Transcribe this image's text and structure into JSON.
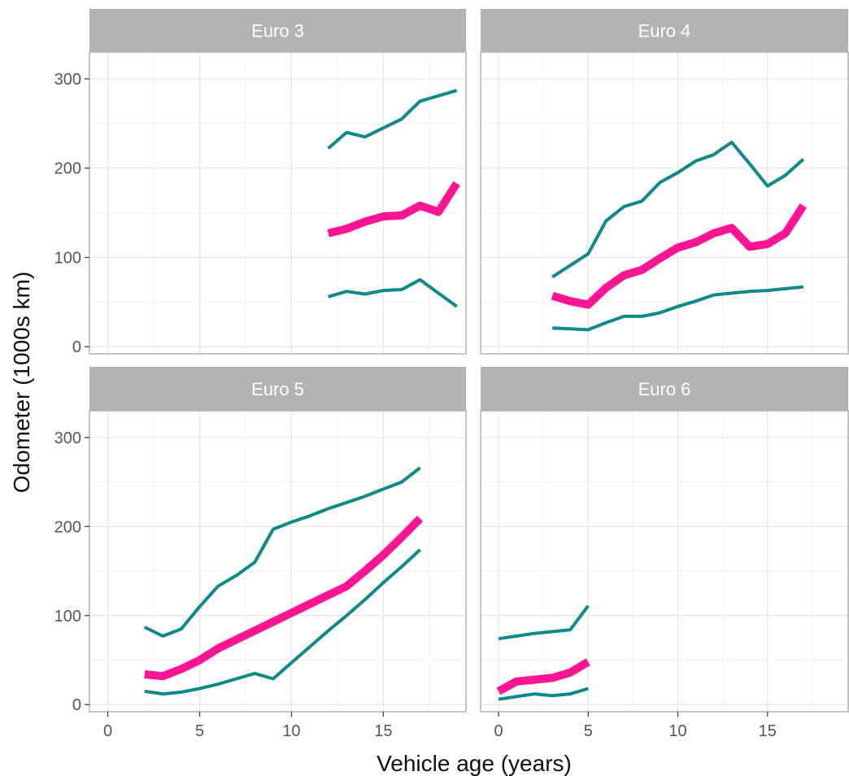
{
  "chart_data": {
    "type": "line",
    "xlabel": "Vehicle age (years)",
    "ylabel": "Odometer (1000s km)",
    "xlim": [
      -1,
      19.5
    ],
    "ylim": [
      -8,
      330
    ],
    "x_ticks": [
      0,
      5,
      10,
      15
    ],
    "y_ticks": [
      0,
      100,
      200,
      300
    ],
    "grid": true,
    "colors": {
      "bounds": "#0e8a8a",
      "median": "#ff1493",
      "strip": "#b3b3b3",
      "panel_border": "#b3b3b3",
      "grid_major": "#e6e6e6",
      "grid_minor": "#f2f2f2"
    },
    "facets": [
      {
        "title": "Euro 3",
        "series": [
          {
            "role": "upper",
            "x": [
              12,
              13,
              14,
              15,
              16,
              17,
              18,
              19
            ],
            "y": [
              222,
              240,
              235,
              245,
              255,
              275,
              281,
              287
            ]
          },
          {
            "role": "median",
            "x": [
              12,
              13,
              14,
              15,
              16,
              17,
              18,
              19
            ],
            "y": [
              127,
              132,
              140,
              146,
              147,
              158,
              151,
              183
            ]
          },
          {
            "role": "lower",
            "x": [
              12,
              13,
              14,
              15,
              16,
              17,
              18,
              19
            ],
            "y": [
              56,
              62,
              59,
              63,
              64,
              75,
              60,
              45
            ]
          }
        ]
      },
      {
        "title": "Euro 4",
        "series": [
          {
            "role": "upper",
            "x": [
              3,
              4,
              5,
              6,
              7,
              8,
              9,
              10,
              11,
              12,
              13,
              14,
              15,
              16,
              17
            ],
            "y": [
              78,
              91,
              104,
              141,
              157,
              163,
              184,
              195,
              208,
              215,
              229,
              205,
              180,
              192,
              210
            ]
          },
          {
            "role": "median",
            "x": [
              3,
              4,
              5,
              6,
              7,
              8,
              9,
              10,
              11,
              12,
              13,
              14,
              15,
              16,
              17
            ],
            "y": [
              57,
              51,
              47,
              66,
              80,
              86,
              99,
              111,
              117,
              127,
              133,
              112,
              115,
              127,
              158
            ]
          },
          {
            "role": "lower",
            "x": [
              3,
              4,
              5,
              6,
              7,
              8,
              9,
              10,
              11,
              12,
              13,
              14,
              15,
              16,
              17
            ],
            "y": [
              21,
              20,
              19,
              27,
              34,
              34,
              38,
              45,
              51,
              58,
              60,
              62,
              63,
              65,
              67
            ]
          }
        ]
      },
      {
        "title": "Euro 5",
        "series": [
          {
            "role": "upper",
            "x": [
              2,
              3,
              4,
              5,
              6,
              7,
              8,
              9,
              10,
              11,
              12,
              13,
              14,
              15,
              16,
              17
            ],
            "y": [
              87,
              77,
              85,
              110,
              133,
              145,
              160,
              197,
              205,
              212,
              220,
              227,
              234,
              242,
              250,
              266
            ]
          },
          {
            "role": "median",
            "x": [
              2,
              3,
              4,
              5,
              6,
              7,
              8,
              9,
              10,
              11,
              12,
              13,
              14,
              15,
              16,
              17
            ],
            "y": [
              34,
              32,
              40,
              50,
              63,
              73,
              83,
              93,
              103,
              113,
              123,
              133,
              150,
              168,
              188,
              209
            ]
          },
          {
            "role": "lower",
            "x": [
              2,
              3,
              4,
              5,
              6,
              7,
              8,
              9,
              10,
              11,
              12,
              13,
              14,
              15,
              16,
              17
            ],
            "y": [
              15,
              12,
              14,
              18,
              23,
              29,
              35,
              29,
              47,
              65,
              83,
              100,
              118,
              137,
              155,
              174
            ]
          }
        ]
      },
      {
        "title": "Euro 6",
        "series": [
          {
            "role": "upper",
            "x": [
              0,
              1,
              2,
              3,
              4,
              5
            ],
            "y": [
              74,
              77,
              80,
              82,
              84,
              111
            ]
          },
          {
            "role": "median",
            "x": [
              0,
              1,
              2,
              3,
              4,
              5
            ],
            "y": [
              15,
              26,
              28,
              30,
              36,
              48
            ]
          },
          {
            "role": "lower",
            "x": [
              0,
              1,
              2,
              3,
              4,
              5
            ],
            "y": [
              6,
              9,
              12,
              10,
              12,
              18
            ]
          }
        ]
      }
    ]
  }
}
